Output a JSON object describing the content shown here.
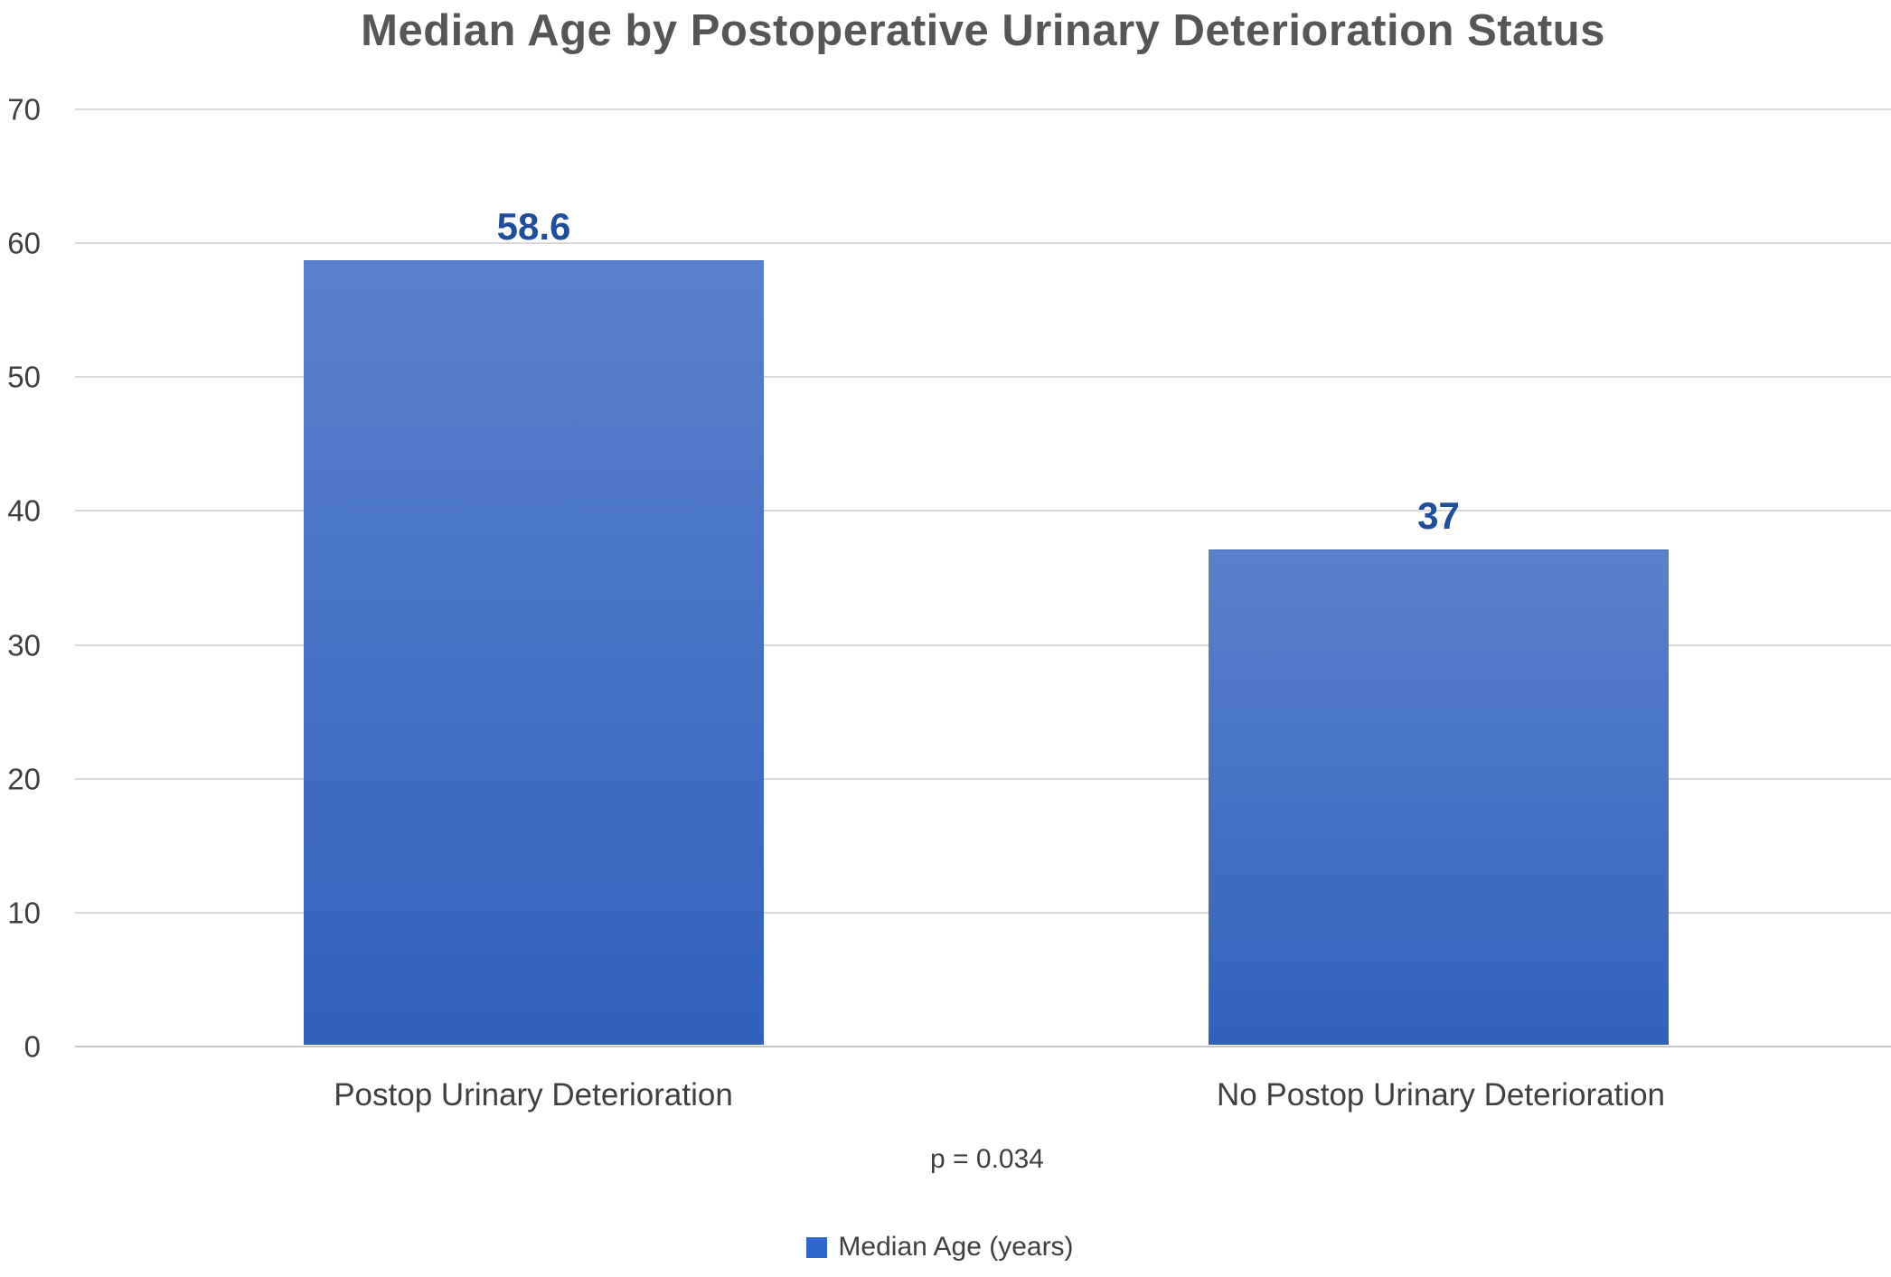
{
  "chart_data": {
    "type": "bar",
    "title": "Median Age by Postoperative Urinary Deterioration Status",
    "categories": [
      "Postop Urinary Deterioration",
      "No Postop Urinary Deterioration"
    ],
    "series": [
      {
        "name": "Median Age (years)",
        "values": [
          58.6,
          37
        ]
      }
    ],
    "value_labels": [
      "58.6",
      "37"
    ],
    "xlabel": "",
    "ylabel": "",
    "ylim": [
      0,
      70
    ],
    "yticks": [
      0,
      10,
      20,
      30,
      40,
      50,
      60,
      70
    ],
    "grid": true,
    "legend": {
      "position": "bottom",
      "entries": [
        "Median Age (years)"
      ]
    },
    "annotation": "p = 0.034",
    "colors": {
      "bar_gradient_top": "#5a81cb",
      "bar_gradient_bottom": "#3062bc",
      "value_label_text": "#1e4e9e",
      "legend_swatch": "#2e68cc",
      "title_text": "#565656",
      "axis_text": "#3f3f3f",
      "gridline": "#d9d9d9"
    }
  }
}
